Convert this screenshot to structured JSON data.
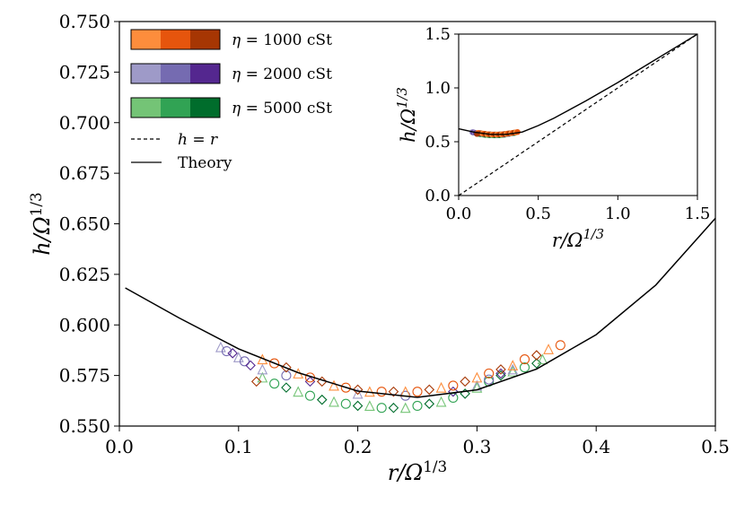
{
  "chart_data": {
    "type": "scatter",
    "main": {
      "xlabel": "r/Ω^{1/3}",
      "ylabel": "h/Ω^{1/3}",
      "xlim": [
        0.0,
        0.5
      ],
      "ylim": [
        0.55,
        0.75
      ],
      "x_ticks": [
        0.0,
        0.1,
        0.2,
        0.3,
        0.4,
        0.5
      ],
      "x_tick_labels": [
        "0.0",
        "0.1",
        "0.2",
        "0.3",
        "0.4",
        "0.5"
      ],
      "y_ticks": [
        0.55,
        0.575,
        0.6,
        0.625,
        0.65,
        0.675,
        0.7,
        0.725,
        0.75
      ],
      "y_tick_labels": [
        "0.550",
        "0.575",
        "0.600",
        "0.625",
        "0.650",
        "0.675",
        "0.700",
        "0.725",
        "0.750"
      ]
    },
    "inset": {
      "xlabel": "r/Ω^{1/3}",
      "ylabel": "h/Ω^{1/3}",
      "xlim": [
        0.0,
        1.5
      ],
      "ylim": [
        0.0,
        1.5
      ],
      "x_ticks": [
        0.0,
        0.5,
        1.0,
        1.5
      ],
      "x_tick_labels": [
        "0.0",
        "0.5",
        "1.0",
        "1.5"
      ],
      "y_ticks": [
        0.0,
        0.5,
        1.0,
        1.5
      ],
      "y_tick_labels": [
        "0.0",
        "0.5",
        "1.0",
        "1.5"
      ],
      "theory": [
        [
          0.0,
          0.62
        ],
        [
          0.1,
          0.588
        ],
        [
          0.2,
          0.568
        ],
        [
          0.3,
          0.568
        ],
        [
          0.4,
          0.59
        ],
        [
          0.5,
          0.65
        ],
        [
          0.6,
          0.72
        ],
        [
          0.8,
          0.88
        ],
        [
          1.0,
          1.05
        ],
        [
          1.2,
          1.23
        ],
        [
          1.4,
          1.41
        ],
        [
          1.5,
          1.5
        ]
      ],
      "h_equals_r": [
        [
          0.0,
          0.0
        ],
        [
          1.5,
          1.5
        ]
      ]
    },
    "theory_curve": {
      "name": "Theory",
      "points": [
        [
          0.005,
          0.6183
        ],
        [
          0.05,
          0.6035
        ],
        [
          0.1,
          0.5882
        ],
        [
          0.15,
          0.5764
        ],
        [
          0.2,
          0.5673
        ],
        [
          0.25,
          0.5642
        ],
        [
          0.3,
          0.5679
        ],
        [
          0.35,
          0.5782
        ],
        [
          0.4,
          0.5952
        ],
        [
          0.45,
          0.6197
        ],
        [
          0.5,
          0.6527
        ]
      ]
    },
    "series": [
      {
        "name": "η = 1000 cSt",
        "colors": [
          "#fd8d3c",
          "#e6550d",
          "#a63603"
        ],
        "points": [
          [
            0.12,
            0.583
          ],
          [
            0.13,
            0.581
          ],
          [
            0.14,
            0.579
          ],
          [
            0.15,
            0.576
          ],
          [
            0.16,
            0.574
          ],
          [
            0.17,
            0.572
          ],
          [
            0.18,
            0.57
          ],
          [
            0.19,
            0.569
          ],
          [
            0.2,
            0.568
          ],
          [
            0.21,
            0.567
          ],
          [
            0.22,
            0.567
          ],
          [
            0.23,
            0.567
          ],
          [
            0.24,
            0.567
          ],
          [
            0.25,
            0.567
          ],
          [
            0.26,
            0.568
          ],
          [
            0.27,
            0.569
          ],
          [
            0.28,
            0.57
          ],
          [
            0.29,
            0.572
          ],
          [
            0.3,
            0.574
          ],
          [
            0.31,
            0.576
          ],
          [
            0.32,
            0.578
          ],
          [
            0.33,
            0.58
          ],
          [
            0.34,
            0.583
          ],
          [
            0.35,
            0.585
          ],
          [
            0.36,
            0.588
          ],
          [
            0.37,
            0.59
          ],
          [
            0.115,
            0.572
          ]
        ]
      },
      {
        "name": "η = 2000 cSt",
        "colors": [
          "#9e9ac8",
          "#756bb1",
          "#54278f"
        ],
        "points": [
          [
            0.085,
            0.589
          ],
          [
            0.09,
            0.587
          ],
          [
            0.095,
            0.586
          ],
          [
            0.1,
            0.584
          ],
          [
            0.105,
            0.582
          ],
          [
            0.11,
            0.58
          ],
          [
            0.12,
            0.578
          ],
          [
            0.14,
            0.575
          ],
          [
            0.16,
            0.572
          ],
          [
            0.2,
            0.566
          ],
          [
            0.24,
            0.565
          ],
          [
            0.28,
            0.567
          ],
          [
            0.3,
            0.57
          ],
          [
            0.31,
            0.573
          ],
          [
            0.32,
            0.576
          ],
          [
            0.33,
            0.578
          ]
        ]
      },
      {
        "name": "η = 5000 cSt",
        "colors": [
          "#74c476",
          "#31a354",
          "#006d2c"
        ],
        "points": [
          [
            0.12,
            0.574
          ],
          [
            0.13,
            0.571
          ],
          [
            0.14,
            0.569
          ],
          [
            0.15,
            0.567
          ],
          [
            0.16,
            0.565
          ],
          [
            0.17,
            0.563
          ],
          [
            0.18,
            0.562
          ],
          [
            0.19,
            0.561
          ],
          [
            0.2,
            0.56
          ],
          [
            0.21,
            0.56
          ],
          [
            0.22,
            0.559
          ],
          [
            0.23,
            0.559
          ],
          [
            0.24,
            0.559
          ],
          [
            0.25,
            0.56
          ],
          [
            0.26,
            0.561
          ],
          [
            0.27,
            0.562
          ],
          [
            0.28,
            0.564
          ],
          [
            0.29,
            0.566
          ],
          [
            0.3,
            0.569
          ],
          [
            0.31,
            0.572
          ],
          [
            0.32,
            0.575
          ],
          [
            0.33,
            0.577
          ],
          [
            0.34,
            0.579
          ],
          [
            0.35,
            0.581
          ],
          [
            0.355,
            0.583
          ]
        ]
      }
    ],
    "legend": [
      {
        "kind": "patch",
        "eta": "η",
        "text": " = 1000 cSt",
        "colors": [
          "#fd8d3c",
          "#e6550d",
          "#a63603"
        ]
      },
      {
        "kind": "patch",
        "eta": "η",
        "text": " = 2000 cSt",
        "colors": [
          "#9e9ac8",
          "#756bb1",
          "#54278f"
        ]
      },
      {
        "kind": "patch",
        "eta": "η",
        "text": " = 5000 cSt",
        "colors": [
          "#74c476",
          "#31a354",
          "#006d2c"
        ]
      },
      {
        "kind": "dashed",
        "text": "h = r"
      },
      {
        "kind": "solid",
        "text": "Theory"
      }
    ],
    "legend_position": "top-left"
  }
}
